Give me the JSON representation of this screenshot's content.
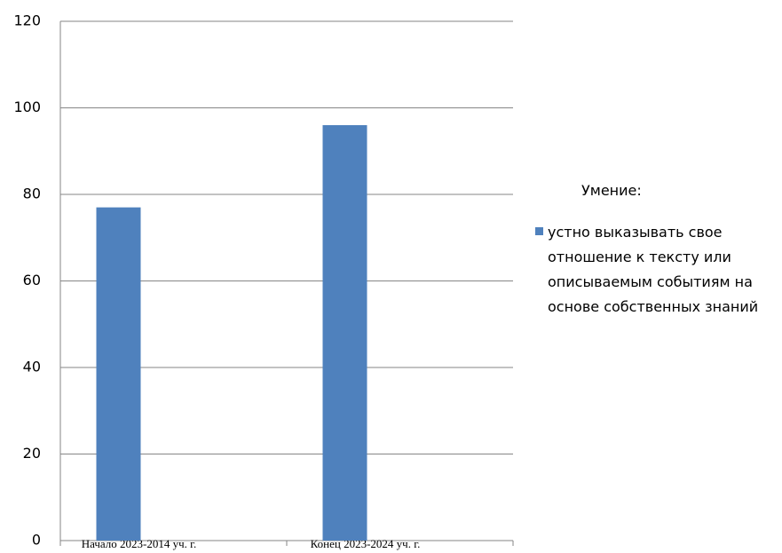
{
  "chart_data": {
    "type": "bar",
    "categories": [
      "Начало 2023-2014 уч. г.",
      "Конец  2023-2024 уч. г."
    ],
    "series": [
      {
        "name": "устно выказывать свое отношение к тексту или описываемым событиям на основе собственных знаний",
        "color": "#4f81bd",
        "values": [
          77,
          96
        ]
      }
    ],
    "legend_title": "Умение:",
    "ylim": [
      0,
      120
    ],
    "yticks": [
      0,
      20,
      40,
      60,
      80,
      100,
      120
    ],
    "grid": true,
    "legend": "right"
  }
}
